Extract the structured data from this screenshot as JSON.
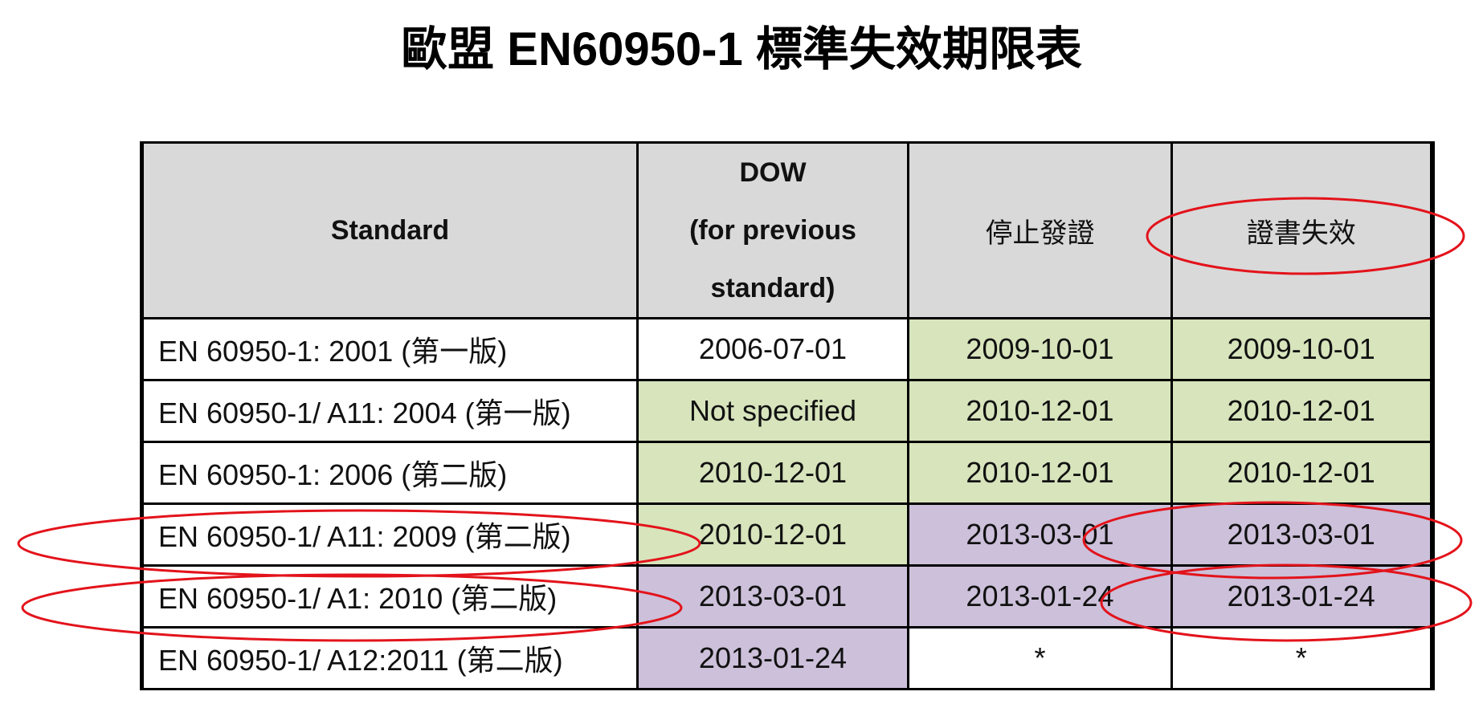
{
  "header": {
    "title": "歐盟 EN60950-1  標準失效期限表"
  },
  "table": {
    "columns": [
      "Standard",
      [
        "DOW",
        "(for previous",
        "standard)"
      ],
      "停止發證",
      "證書失效"
    ],
    "rows": [
      [
        "EN 60950-1: 2001 (第一版)",
        "2006-07-01",
        "2009-10-01",
        "2009-10-01"
      ],
      [
        "EN 60950-1/ A11: 2004 (第一版)",
        "Not specified",
        "2010-12-01",
        "2010-12-01"
      ],
      [
        "EN 60950-1: 2006 (第二版)",
        "2010-12-01",
        "2010-12-01",
        "2010-12-01"
      ],
      [
        "EN 60950-1/ A11: 2009 (第二版)",
        "2010-12-01",
        "2013-03-01",
        "2013-03-01"
      ],
      [
        "EN 60950-1/ A1: 2010 (第二版)",
        "2013-03-01",
        "2013-01-24",
        "2013-01-24"
      ],
      [
        "EN 60950-1/ A12:2011 (第二版)",
        "2013-01-24",
        "*",
        "*"
      ]
    ]
  }
}
